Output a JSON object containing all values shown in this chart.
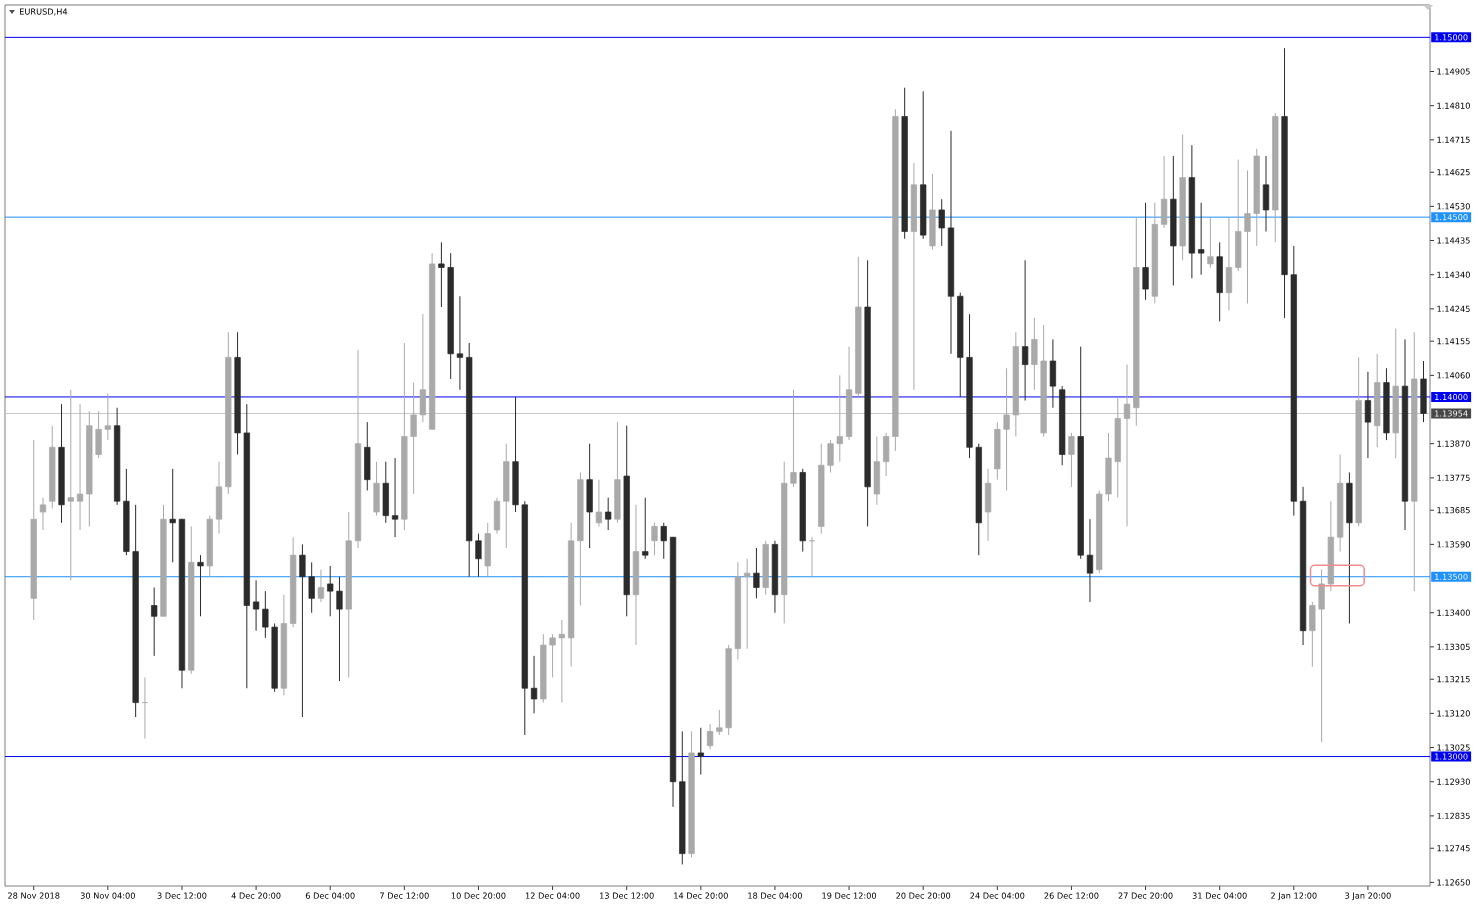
{
  "chart_data": {
    "type": "candlestick",
    "title": "EURUSD,H4",
    "categories": [
      "28 Nov 2018",
      null,
      null,
      null,
      null,
      null,
      null,
      null,
      "30 Nov 04:00",
      null,
      null,
      null,
      null,
      null,
      null,
      null,
      "3 Dec 12:00",
      null,
      null,
      null,
      null,
      null,
      null,
      null,
      "4 Dec 20:00",
      null,
      null,
      null,
      null,
      null,
      null,
      null,
      "6 Dec 04:00",
      null,
      null,
      null,
      null,
      null,
      null,
      null,
      "7 Dec 12:00",
      null,
      null,
      null,
      null,
      null,
      null,
      null,
      "10 Dec 20:00",
      null,
      null,
      null,
      null,
      null,
      null,
      null,
      "12 Dec 04:00",
      null,
      null,
      null,
      null,
      null,
      null,
      null,
      "13 Dec 12:00",
      null,
      null,
      null,
      null,
      null,
      null,
      null,
      "14 Dec 20:00",
      null,
      null,
      null,
      null,
      null,
      null,
      null,
      "18 Dec 04:00",
      null,
      null,
      null,
      null,
      null,
      null,
      null,
      "19 Dec 12:00",
      null,
      null,
      null,
      null,
      null,
      null,
      null,
      "20 Dec 20:00",
      null,
      null,
      null,
      null,
      null,
      null,
      null,
      "24 Dec 04:00",
      null,
      null,
      null,
      null,
      null,
      null,
      null,
      "26 Dec 12:00",
      null,
      null,
      null,
      null,
      null,
      null,
      null,
      "27 Dec 20:00",
      null,
      null,
      null,
      null,
      null,
      null,
      null,
      "31 Dec 04:00",
      null,
      null,
      null,
      null,
      null,
      null,
      null,
      "2 Jan 12:00",
      null,
      null,
      null,
      null,
      null,
      null,
      null,
      "3 Jan 20:00",
      null,
      null,
      null,
      null,
      null,
      null
    ],
    "ohlc": [
      [
        1.1344,
        1.1388,
        1.1338,
        1.1366
      ],
      [
        1.1368,
        1.1372,
        1.1363,
        1.137
      ],
      [
        1.1371,
        1.1392,
        1.1369,
        1.1386
      ],
      [
        1.1386,
        1.1398,
        1.1365,
        1.137
      ],
      [
        1.1371,
        1.1402,
        1.1349,
        1.1372
      ],
      [
        1.1371,
        1.1398,
        1.1363,
        1.1373
      ],
      [
        1.1373,
        1.1396,
        1.1364,
        1.1392
      ],
      [
        1.1384,
        1.1396,
        1.1383,
        1.1391
      ],
      [
        1.1391,
        1.1401,
        1.1388,
        1.1392
      ],
      [
        1.1392,
        1.1397,
        1.137,
        1.1371
      ],
      [
        1.1371,
        1.138,
        1.1356,
        1.1357
      ],
      [
        1.1357,
        1.137,
        1.1311,
        1.1315
      ],
      [
        1.1315,
        1.1322,
        1.1305,
        1.1315
      ],
      [
        1.1342,
        1.1347,
        1.1328,
        1.1339
      ],
      [
        1.1339,
        1.137,
        1.1339,
        1.1366
      ],
      [
        1.1366,
        1.138,
        1.1354,
        1.1365
      ],
      [
        1.1366,
        1.1366,
        1.1319,
        1.1324
      ],
      [
        1.1324,
        1.1364,
        1.1323,
        1.1354
      ],
      [
        1.1354,
        1.1356,
        1.1339,
        1.1353
      ],
      [
        1.1353,
        1.1367,
        1.135,
        1.1366
      ],
      [
        1.1366,
        1.1382,
        1.1362,
        1.1375
      ],
      [
        1.1375,
        1.1418,
        1.1373,
        1.1411
      ],
      [
        1.1411,
        1.1418,
        1.1384,
        1.139
      ],
      [
        1.139,
        1.1398,
        1.1319,
        1.1342
      ],
      [
        1.1343,
        1.1349,
        1.1335,
        1.1341
      ],
      [
        1.1341,
        1.1346,
        1.1333,
        1.1336
      ],
      [
        1.1336,
        1.1337,
        1.1318,
        1.1319
      ],
      [
        1.1319,
        1.1345,
        1.1317,
        1.1337
      ],
      [
        1.1337,
        1.1361,
        1.1336,
        1.1356
      ],
      [
        1.1356,
        1.1359,
        1.1311,
        1.135
      ],
      [
        1.135,
        1.1354,
        1.134,
        1.1344
      ],
      [
        1.1344,
        1.1352,
        1.1343,
        1.1347
      ],
      [
        1.1348,
        1.1353,
        1.1339,
        1.1346
      ],
      [
        1.1346,
        1.135,
        1.1321,
        1.1341
      ],
      [
        1.1341,
        1.1368,
        1.1322,
        1.136
      ],
      [
        1.136,
        1.1413,
        1.1358,
        1.1387
      ],
      [
        1.1386,
        1.1393,
        1.1374,
        1.1377
      ],
      [
        1.1368,
        1.1382,
        1.1367,
        1.1376
      ],
      [
        1.1376,
        1.1382,
        1.1365,
        1.1367
      ],
      [
        1.1367,
        1.1383,
        1.1361,
        1.1366
      ],
      [
        1.1366,
        1.1415,
        1.1363,
        1.1389
      ],
      [
        1.1389,
        1.1404,
        1.1373,
        1.1395
      ],
      [
        1.1395,
        1.1423,
        1.1393,
        1.1402
      ],
      [
        1.1391,
        1.144,
        1.1391,
        1.1437
      ],
      [
        1.1437,
        1.1443,
        1.1425,
        1.1436
      ],
      [
        1.1436,
        1.144,
        1.1405,
        1.1412
      ],
      [
        1.1412,
        1.1428,
        1.1402,
        1.1411
      ],
      [
        1.1411,
        1.1415,
        1.135,
        1.136
      ],
      [
        1.136,
        1.1362,
        1.135,
        1.1355
      ],
      [
        1.1353,
        1.1365,
        1.135,
        1.1362
      ],
      [
        1.1363,
        1.1372,
        1.1362,
        1.1371
      ],
      [
        1.1371,
        1.1387,
        1.1358,
        1.1382
      ],
      [
        1.1382,
        1.14,
        1.1368,
        1.137
      ],
      [
        1.137,
        1.1371,
        1.1306,
        1.1319
      ],
      [
        1.1319,
        1.1328,
        1.1312,
        1.1316
      ],
      [
        1.1316,
        1.1334,
        1.1315,
        1.1331
      ],
      [
        1.1331,
        1.1334,
        1.1322,
        1.1333
      ],
      [
        1.1333,
        1.1338,
        1.1315,
        1.1334
      ],
      [
        1.1333,
        1.1365,
        1.1325,
        1.136
      ],
      [
        1.136,
        1.1379,
        1.1342,
        1.1377
      ],
      [
        1.1377,
        1.1387,
        1.1358,
        1.1368
      ],
      [
        1.1365,
        1.1377,
        1.1364,
        1.1368
      ],
      [
        1.1368,
        1.1372,
        1.1363,
        1.1366
      ],
      [
        1.1366,
        1.1393,
        1.1365,
        1.1377
      ],
      [
        1.1378,
        1.1392,
        1.1339,
        1.1345
      ],
      [
        1.1345,
        1.137,
        1.1331,
        1.1357
      ],
      [
        1.1357,
        1.1372,
        1.1355,
        1.1356
      ],
      [
        1.136,
        1.1365,
        1.1356,
        1.1364
      ],
      [
        1.1364,
        1.1365,
        1.1355,
        1.136
      ],
      [
        1.1361,
        1.1361,
        1.1286,
        1.1293
      ],
      [
        1.1293,
        1.1307,
        1.127,
        1.1273
      ],
      [
        1.1273,
        1.1307,
        1.1272,
        1.1301
      ],
      [
        1.1301,
        1.1308,
        1.1295,
        1.13
      ],
      [
        1.1303,
        1.1309,
        1.1302,
        1.1307
      ],
      [
        1.1307,
        1.1313,
        1.1306,
        1.1308
      ],
      [
        1.1308,
        1.1331,
        1.1306,
        1.133
      ],
      [
        1.133,
        1.1354,
        1.1327,
        1.135
      ],
      [
        1.135,
        1.1355,
        1.133,
        1.1351
      ],
      [
        1.1351,
        1.1358,
        1.1344,
        1.1347
      ],
      [
        1.1347,
        1.136,
        1.1345,
        1.1359
      ],
      [
        1.1359,
        1.136,
        1.134,
        1.1345
      ],
      [
        1.1345,
        1.1382,
        1.1337,
        1.1376
      ],
      [
        1.1376,
        1.1402,
        1.1375,
        1.1379
      ],
      [
        1.1379,
        1.138,
        1.1357,
        1.136
      ],
      [
        1.136,
        1.1361,
        1.135,
        1.136
      ],
      [
        1.1364,
        1.1387,
        1.1362,
        1.1381
      ],
      [
        1.1381,
        1.1388,
        1.1379,
        1.1387
      ],
      [
        1.1387,
        1.1406,
        1.1382,
        1.1389
      ],
      [
        1.1389,
        1.1414,
        1.1388,
        1.1402
      ],
      [
        1.1401,
        1.1439,
        1.14,
        1.1425
      ],
      [
        1.1425,
        1.1438,
        1.1364,
        1.1375
      ],
      [
        1.1373,
        1.1389,
        1.137,
        1.1382
      ],
      [
        1.1382,
        1.139,
        1.1378,
        1.1389
      ],
      [
        1.1389,
        1.148,
        1.1385,
        1.1478
      ],
      [
        1.1478,
        1.1486,
        1.1444,
        1.1446
      ],
      [
        1.1446,
        1.1465,
        1.1402,
        1.1459
      ],
      [
        1.1459,
        1.1485,
        1.1444,
        1.1445
      ],
      [
        1.1442,
        1.1462,
        1.1441,
        1.1452
      ],
      [
        1.1452,
        1.1455,
        1.1442,
        1.1447
      ],
      [
        1.1447,
        1.1474,
        1.1412,
        1.1428
      ],
      [
        1.1428,
        1.1429,
        1.14,
        1.1411
      ],
      [
        1.1411,
        1.1423,
        1.1383,
        1.1386
      ],
      [
        1.1386,
        1.1387,
        1.1356,
        1.1365
      ],
      [
        1.1368,
        1.138,
        1.136,
        1.1376
      ],
      [
        1.138,
        1.1393,
        1.1377,
        1.1391
      ],
      [
        1.1391,
        1.1408,
        1.1374,
        1.1395
      ],
      [
        1.1395,
        1.1418,
        1.1389,
        1.1414
      ],
      [
        1.1414,
        1.1438,
        1.1399,
        1.1409
      ],
      [
        1.1409,
        1.1422,
        1.1402,
        1.1416
      ],
      [
        1.139,
        1.142,
        1.1389,
        1.141
      ],
      [
        1.141,
        1.1416,
        1.1397,
        1.1403
      ],
      [
        1.1402,
        1.1403,
        1.1381,
        1.1384
      ],
      [
        1.1384,
        1.139,
        1.1375,
        1.1389
      ],
      [
        1.1389,
        1.1414,
        1.1355,
        1.1356
      ],
      [
        1.1356,
        1.1366,
        1.1343,
        1.1351
      ],
      [
        1.1352,
        1.1374,
        1.1351,
        1.1373
      ],
      [
        1.1373,
        1.139,
        1.1371,
        1.1383
      ],
      [
        1.1382,
        1.14,
        1.1372,
        1.1394
      ],
      [
        1.1394,
        1.1409,
        1.1364,
        1.1398
      ],
      [
        1.1397,
        1.145,
        1.1392,
        1.1436
      ],
      [
        1.1436,
        1.1454,
        1.1427,
        1.143
      ],
      [
        1.1428,
        1.1454,
        1.1426,
        1.1448
      ],
      [
        1.1448,
        1.1467,
        1.1447,
        1.1455
      ],
      [
        1.1455,
        1.1467,
        1.1431,
        1.1442
      ],
      [
        1.1442,
        1.1473,
        1.1438,
        1.1461
      ],
      [
        1.1461,
        1.147,
        1.1433,
        1.144
      ],
      [
        1.1441,
        1.1454,
        1.1434,
        1.144
      ],
      [
        1.1437,
        1.145,
        1.1436,
        1.1439
      ],
      [
        1.1439,
        1.1443,
        1.1421,
        1.1429
      ],
      [
        1.1429,
        1.145,
        1.1424,
        1.1436
      ],
      [
        1.1436,
        1.1466,
        1.1435,
        1.1446
      ],
      [
        1.1446,
        1.1463,
        1.1426,
        1.1451
      ],
      [
        1.1451,
        1.1469,
        1.1442,
        1.1467
      ],
      [
        1.1459,
        1.1467,
        1.1446,
        1.1452
      ],
      [
        1.1452,
        1.1479,
        1.1443,
        1.1478
      ],
      [
        1.1478,
        1.1497,
        1.1422,
        1.1434
      ],
      [
        1.1434,
        1.1442,
        1.1367,
        1.1371
      ],
      [
        1.1371,
        1.1375,
        1.1331,
        1.1335
      ],
      [
        1.1335,
        1.1343,
        1.1325,
        1.1342
      ],
      [
        1.1341,
        1.1352,
        1.1304,
        1.1348
      ],
      [
        1.1348,
        1.1371,
        1.1346,
        1.1361
      ],
      [
        1.1361,
        1.1384,
        1.1357,
        1.1376
      ],
      [
        1.1376,
        1.1379,
        1.1337,
        1.1365
      ],
      [
        1.1365,
        1.1411,
        1.1364,
        1.1399
      ],
      [
        1.1399,
        1.1407,
        1.1383,
        1.1393
      ],
      [
        1.1392,
        1.1412,
        1.1386,
        1.1404
      ],
      [
        1.1404,
        1.1408,
        1.1388,
        1.139
      ],
      [
        1.139,
        1.1419,
        1.1383,
        1.1403
      ],
      [
        1.1403,
        1.1416,
        1.1363,
        1.1371
      ],
      [
        1.1371,
        1.1418,
        1.1346,
        1.1405
      ],
      [
        1.1405,
        1.141,
        1.1393,
        1.13954
      ]
    ],
    "colors": [
      "#a9a9a9",
      "#a9a9a9",
      "#a9a9a9",
      "#2b2b2b",
      "#a9a9a9",
      "#a9a9a9",
      "#a9a9a9",
      "#a9a9a9",
      "#a9a9a9",
      "#2b2b2b",
      "#2b2b2b",
      "#2b2b2b",
      "#a9a9a9",
      "#2b2b2b",
      "#a9a9a9",
      "#2b2b2b",
      "#2b2b2b",
      "#a9a9a9",
      "#2b2b2b",
      "#a9a9a9",
      "#a9a9a9",
      "#a9a9a9",
      "#2b2b2b",
      "#2b2b2b",
      "#2b2b2b",
      "#2b2b2b",
      "#2b2b2b",
      "#a9a9a9",
      "#a9a9a9",
      "#2b2b2b",
      "#2b2b2b",
      "#a9a9a9",
      "#2b2b2b",
      "#2b2b2b",
      "#a9a9a9",
      "#a9a9a9",
      "#2b2b2b",
      "#a9a9a9",
      "#2b2b2b",
      "#2b2b2b",
      "#a9a9a9",
      "#a9a9a9",
      "#a9a9a9",
      "#a9a9a9",
      "#2b2b2b",
      "#2b2b2b",
      "#2b2b2b",
      "#2b2b2b",
      "#2b2b2b",
      "#a9a9a9",
      "#a9a9a9",
      "#a9a9a9",
      "#2b2b2b",
      "#2b2b2b",
      "#2b2b2b",
      "#a9a9a9",
      "#a9a9a9",
      "#a9a9a9",
      "#a9a9a9",
      "#a9a9a9",
      "#2b2b2b",
      "#a9a9a9",
      "#2b2b2b",
      "#a9a9a9",
      "#2b2b2b",
      "#a9a9a9",
      "#2b2b2b",
      "#a9a9a9",
      "#2b2b2b",
      "#2b2b2b",
      "#2b2b2b",
      "#a9a9a9",
      "#2b2b2b",
      "#a9a9a9",
      "#a9a9a9",
      "#a9a9a9",
      "#a9a9a9",
      "#a9a9a9",
      "#2b2b2b",
      "#a9a9a9",
      "#2b2b2b",
      "#a9a9a9",
      "#a9a9a9",
      "#2b2b2b",
      "#a9a9a9",
      "#a9a9a9",
      "#a9a9a9",
      "#a9a9a9",
      "#a9a9a9",
      "#a9a9a9",
      "#2b2b2b",
      "#a9a9a9",
      "#a9a9a9",
      "#a9a9a9",
      "#2b2b2b",
      "#a9a9a9",
      "#2b2b2b",
      "#a9a9a9",
      "#2b2b2b",
      "#2b2b2b",
      "#2b2b2b",
      "#2b2b2b",
      "#2b2b2b",
      "#a9a9a9",
      "#a9a9a9",
      "#a9a9a9",
      "#a9a9a9",
      "#2b2b2b",
      "#a9a9a9",
      "#a9a9a9",
      "#2b2b2b",
      "#2b2b2b",
      "#a9a9a9",
      "#2b2b2b",
      "#2b2b2b",
      "#a9a9a9",
      "#a9a9a9",
      "#a9a9a9",
      "#a9a9a9",
      "#a9a9a9",
      "#2b2b2b",
      "#a9a9a9",
      "#a9a9a9",
      "#2b2b2b",
      "#a9a9a9",
      "#2b2b2b",
      "#2b2b2b",
      "#a9a9a9",
      "#2b2b2b",
      "#a9a9a9",
      "#a9a9a9",
      "#a9a9a9",
      "#a9a9a9",
      "#2b2b2b",
      "#a9a9a9",
      "#2b2b2b",
      "#2b2b2b",
      "#2b2b2b",
      "#a9a9a9",
      "#a9a9a9",
      "#a9a9a9",
      "#a9a9a9",
      "#2b2b2b",
      "#a9a9a9",
      "#2b2b2b",
      "#a9a9a9",
      "#2b2b2b",
      "#a9a9a9",
      "#2b2b2b",
      "#a9a9a9",
      "#2b2b2b"
    ],
    "ylim": [
      1.1264,
      1.1509
    ],
    "yticks": [
      {
        "value": 1.14905,
        "label": "1.14905"
      },
      {
        "value": 1.1481,
        "label": "1.14810"
      },
      {
        "value": 1.14715,
        "label": "1.14715"
      },
      {
        "value": 1.14625,
        "label": "1.14625"
      },
      {
        "value": 1.1453,
        "label": "1.14530"
      },
      {
        "value": 1.14435,
        "label": "1.14435"
      },
      {
        "value": 1.1434,
        "label": "1.14340"
      },
      {
        "value": 1.14245,
        "label": "1.14245"
      },
      {
        "value": 1.14155,
        "label": "1.14155"
      },
      {
        "value": 1.1406,
        "label": "1.14060"
      },
      {
        "value": 1.1387,
        "label": "1.13870"
      },
      {
        "value": 1.13775,
        "label": "1.13775"
      },
      {
        "value": 1.13685,
        "label": "1.13685"
      },
      {
        "value": 1.1359,
        "label": "1.13590"
      },
      {
        "value": 1.134,
        "label": "1.13400"
      },
      {
        "value": 1.13305,
        "label": "1.13305"
      },
      {
        "value": 1.13215,
        "label": "1.13215"
      },
      {
        "value": 1.1312,
        "label": "1.13120"
      },
      {
        "value": 1.13025,
        "label": "1.13025"
      },
      {
        "value": 1.1293,
        "label": "1.12930"
      },
      {
        "value": 1.12835,
        "label": "1.12835"
      },
      {
        "value": 1.12745,
        "label": "1.12745"
      },
      {
        "value": 1.1265,
        "label": "1.12650"
      }
    ],
    "ref_lines": [
      {
        "axis": "y",
        "value": 1.15,
        "label": "1.15000",
        "color": "#0000f0"
      },
      {
        "axis": "y",
        "value": 1.145,
        "label": "1.14500",
        "color": "#1e90ff"
      },
      {
        "axis": "y",
        "value": 1.14,
        "label": "1.14000",
        "color": "#0000f0"
      },
      {
        "axis": "y",
        "value": 1.13954,
        "label": "1.13954",
        "color": "#c8c8c8"
      },
      {
        "axis": "y",
        "value": 1.135,
        "label": "1.13500",
        "color": "#1e90ff"
      },
      {
        "axis": "y",
        "value": 1.13,
        "label": "1.13000",
        "color": "#0000f0"
      }
    ]
  }
}
